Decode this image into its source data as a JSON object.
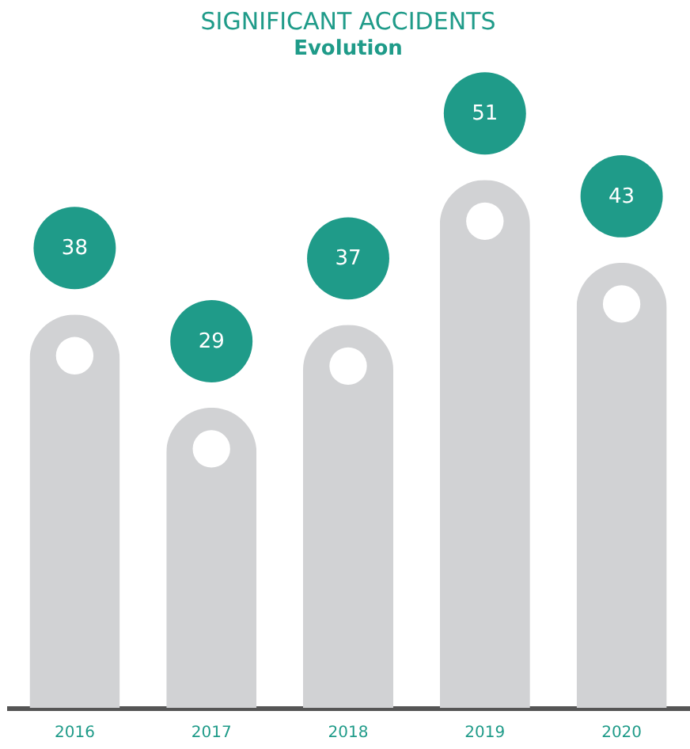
{
  "chart_data": {
    "type": "bar",
    "title": "SIGNIFICANT ACCIDENTS",
    "subtitle": "Evolution",
    "categories": [
      "2016",
      "2017",
      "2018",
      "2019",
      "2020"
    ],
    "values": [
      38,
      29,
      37,
      51,
      43
    ],
    "color": "#d1d2d4",
    "data_labels": true
  }
}
